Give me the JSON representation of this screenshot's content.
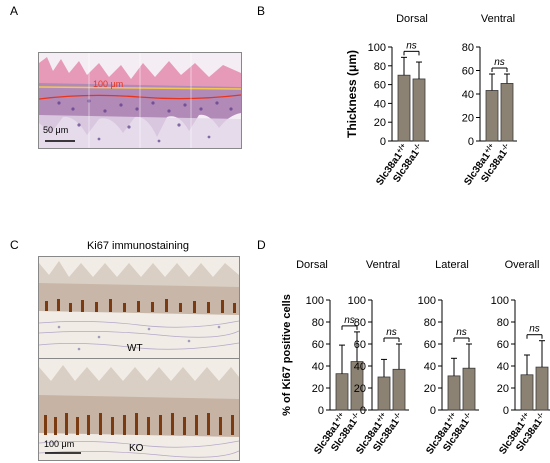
{
  "panels": {
    "a": {
      "letter": "A",
      "image_label": "100 μm",
      "scale_bar": "50 μm",
      "colors": {
        "tissue_pink": "#d88aa8",
        "nuclei": "#5a3a8a",
        "line_red": "#e8341c",
        "line_yellow": "#f2c94c"
      }
    },
    "b": {
      "letter": "B"
    },
    "c": {
      "letter": "C",
      "title": "Ki67 immunostaining",
      "wt_label": "WT",
      "ko_label": "KO",
      "scale_bar": "100 μm"
    },
    "d": {
      "letter": "D"
    }
  },
  "chart_data": [
    {
      "id": "B-dorsal",
      "type": "bar",
      "title": "Dorsal",
      "ylabel": "Thickness (μm)",
      "ylim": [
        0,
        100
      ],
      "yticks": [
        0,
        20,
        40,
        60,
        80,
        100
      ],
      "categories": [
        "Slc38a1 +/+",
        "Slc38a1 -/-"
      ],
      "values": [
        70,
        66
      ],
      "errors": [
        19,
        18
      ],
      "significance": "ns",
      "bar_color": "#8c8273"
    },
    {
      "id": "B-ventral",
      "type": "bar",
      "title": "Ventral",
      "ylabel": "",
      "ylim": [
        0,
        80
      ],
      "yticks": [
        0,
        20,
        40,
        60,
        80
      ],
      "categories": [
        "Slc38a1 +/+",
        "Slc38a1 -/-"
      ],
      "values": [
        43,
        49
      ],
      "errors": [
        14,
        8
      ],
      "significance": "ns",
      "bar_color": "#8c8273"
    },
    {
      "id": "D-dorsal",
      "type": "bar",
      "title": "Dorsal",
      "ylabel": "% of Ki67 positive cells",
      "ylim": [
        0,
        100
      ],
      "yticks": [
        0,
        20,
        40,
        60,
        80,
        100
      ],
      "categories": [
        "Slc38a1 +/+",
        "Slc38a1 -/-"
      ],
      "values": [
        33,
        44
      ],
      "errors": [
        26,
        27
      ],
      "significance": "ns",
      "bar_color": "#8c8273"
    },
    {
      "id": "D-ventral",
      "type": "bar",
      "title": "Ventral",
      "ylabel": "",
      "ylim": [
        0,
        100
      ],
      "yticks": [
        0,
        20,
        40,
        60,
        80,
        100
      ],
      "categories": [
        "Slc38a1 +/+",
        "Slc38a1 -/-"
      ],
      "values": [
        30,
        37
      ],
      "errors": [
        16,
        23
      ],
      "significance": "ns",
      "bar_color": "#8c8273"
    },
    {
      "id": "D-lateral",
      "type": "bar",
      "title": "Lateral",
      "ylabel": "",
      "ylim": [
        0,
        100
      ],
      "yticks": [
        0,
        20,
        40,
        60,
        80,
        100
      ],
      "categories": [
        "Slc38a1 +/+",
        "Slc38a1 -/-"
      ],
      "values": [
        31,
        38
      ],
      "errors": [
        16,
        22
      ],
      "significance": "ns",
      "bar_color": "#8c8273"
    },
    {
      "id": "D-overall",
      "type": "bar",
      "title": "Overall",
      "ylabel": "",
      "ylim": [
        0,
        100
      ],
      "yticks": [
        0,
        20,
        40,
        60,
        80,
        100
      ],
      "categories": [
        "Slc38a1 +/+",
        "Slc38a1 -/-"
      ],
      "values": [
        32,
        39
      ],
      "errors": [
        18,
        24
      ],
      "significance": "ns",
      "bar_color": "#8c8273"
    }
  ]
}
